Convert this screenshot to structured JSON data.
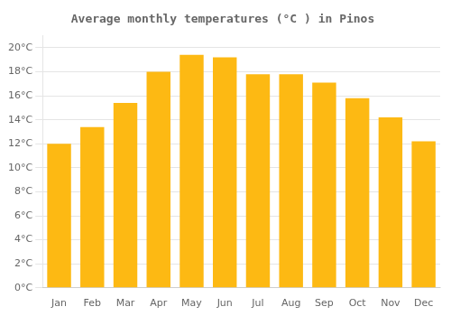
{
  "chart_data": {
    "type": "bar",
    "title": "Average monthly temperatures (°C ) in Pinos",
    "categories": [
      "Jan",
      "Feb",
      "Mar",
      "Apr",
      "May",
      "Jun",
      "Jul",
      "Aug",
      "Sep",
      "Oct",
      "Nov",
      "Dec"
    ],
    "values": [
      12.0,
      13.4,
      15.4,
      18.0,
      19.4,
      19.2,
      17.8,
      17.8,
      17.1,
      15.8,
      14.2,
      12.2
    ],
    "color": "#FDB913",
    "ylim": [
      0,
      21
    ],
    "yticks": [
      {
        "value": 0,
        "label": "0°C"
      },
      {
        "value": 2,
        "label": "2°C"
      },
      {
        "value": 4,
        "label": "4°C"
      },
      {
        "value": 6,
        "label": "6°C"
      },
      {
        "value": 8,
        "label": "8°C"
      },
      {
        "value": 10,
        "label": "10°C"
      },
      {
        "value": 12,
        "label": "12°C"
      },
      {
        "value": 14,
        "label": "14°C"
      },
      {
        "value": 16,
        "label": "16°C"
      },
      {
        "value": 18,
        "label": "18°C"
      },
      {
        "value": 20,
        "label": "20°C"
      }
    ],
    "grid": true
  }
}
